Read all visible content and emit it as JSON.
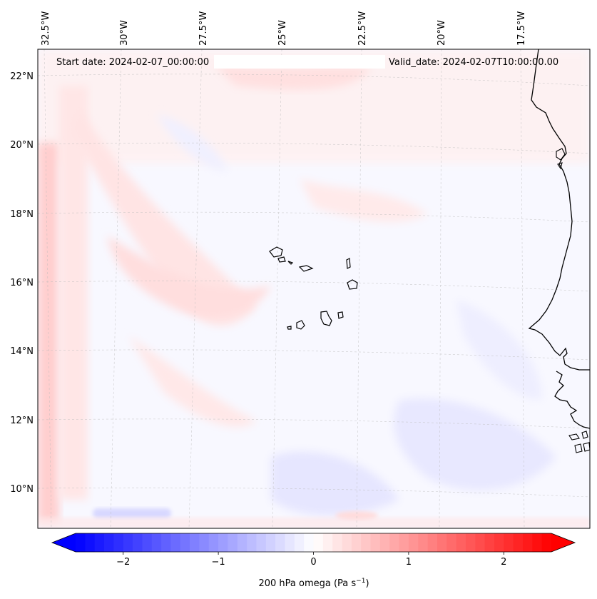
{
  "map": {
    "annotations": {
      "start_date": "Start date: 2024-02-07_00:00:00",
      "valid_date": "Valid_date: 2024-02-07T10:00:00.00"
    },
    "lon_labels": [
      "32.5°W",
      "30°W",
      "27.5°W",
      "25°W",
      "22.5°W",
      "20°W",
      "17.5°W"
    ],
    "lat_labels": [
      "22°N",
      "20°N",
      "18°N",
      "16°N",
      "14°N",
      "12°N",
      "10°N"
    ]
  },
  "colorbar": {
    "label": "200 hPa omega (Pa s",
    "label_exponent": "−1",
    "label_close": ")",
    "ticks": [
      {
        "value": -2,
        "text": "−2"
      },
      {
        "value": -1,
        "text": "−1"
      },
      {
        "value": 0,
        "text": "0"
      },
      {
        "value": 1,
        "text": "1"
      },
      {
        "value": 2,
        "text": "2"
      }
    ],
    "vmin": -2.5,
    "vmax": 2.5,
    "colors": {
      "low": "#0000ff",
      "mid": "#ffffff",
      "high": "#ff0000"
    }
  }
}
